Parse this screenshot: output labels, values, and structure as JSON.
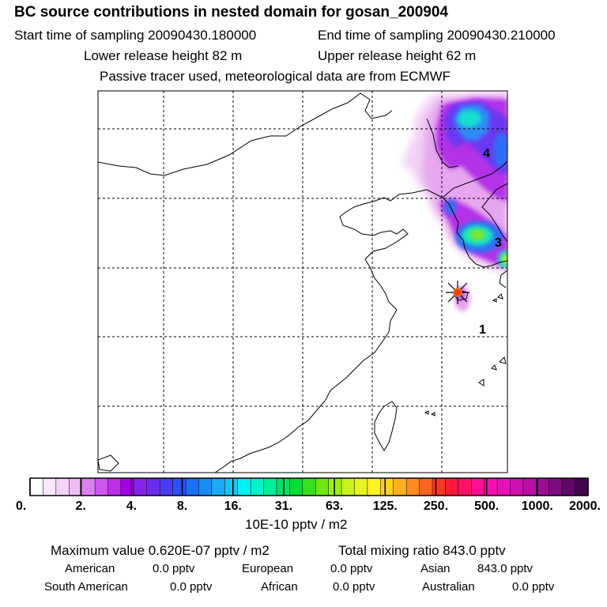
{
  "header": {
    "title": "BC  source contributions in nested domain for gosan_200904",
    "start_label": "Start time of sampling 20090430.180000",
    "end_label": "End time of sampling 20090430.210000",
    "lower_label": "Lower release height   82 m",
    "upper_label": "Upper release height   62 m",
    "tracer_label": "Passive tracer used, meteorological data are from ECMWF"
  },
  "map": {
    "station_marker": "station-star",
    "point_labels": [
      "1",
      "3",
      "4"
    ]
  },
  "colorbar": {
    "unit": "10E-10 pptv / m2",
    "tick_labels": [
      "0.",
      "2.",
      "4.",
      "8.",
      "16.",
      "31.",
      "63.",
      "125.",
      "250.",
      "500.",
      "1000.",
      "2000."
    ],
    "colors": [
      "#ffffff",
      "#fbe8fb",
      "#f5d2f7",
      "#eebcf3",
      "#dc82f0",
      "#cc57ec",
      "#bb2de8",
      "#a600e8",
      "#8a22ee",
      "#6a2cf2",
      "#4a3cf4",
      "#2d4ff6",
      "#1a6ef8",
      "#1a8cf8",
      "#1aaaf6",
      "#16c6f4",
      "#00f2f2",
      "#00f2c8",
      "#00ec9a",
      "#00e06a",
      "#00dc3a",
      "#38e020",
      "#70e810",
      "#a0ee10",
      "#c8f218",
      "#e6f41c",
      "#fff21e",
      "#ffd11e",
      "#ffb11e",
      "#ff8c1e",
      "#ff6420",
      "#ff3626",
      "#ff1a3c",
      "#ff1264",
      "#ff1090",
      "#f80fb4",
      "#e810b6",
      "#d20fb0",
      "#b80ea6",
      "#9c0c96",
      "#7e0a82",
      "#60086a",
      "#44064e"
    ]
  },
  "stats": {
    "max_label": "Maximum value  0.620E-07 pptv / m2",
    "total_label": "Total mixing ratio     843.0 pptv",
    "rows": [
      [
        [
          "American",
          "0.0 pptv"
        ],
        [
          "European",
          "0.0 pptv"
        ],
        [
          "Asian",
          "843.0 pptv"
        ]
      ],
      [
        [
          "South American",
          "0.0 pptv"
        ],
        [
          "African",
          "0.0 pptv"
        ],
        [
          "Australian",
          "0.0 pptv"
        ]
      ]
    ]
  }
}
